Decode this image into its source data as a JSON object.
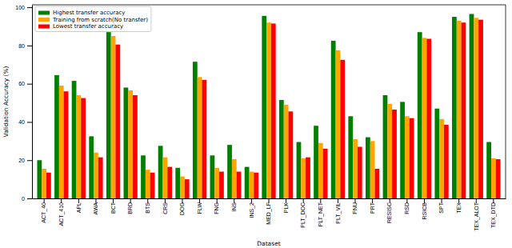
{
  "chart_data": {
    "type": "bar",
    "x_label": "Dataset",
    "y_label": "Validation Accuracy (%)",
    "categories": [
      "ACT_40",
      "ACT_410",
      "APL",
      "AWA",
      "BCT",
      "BRD",
      "BTS",
      "CRS",
      "DOG",
      "FLW",
      "FNG",
      "INS",
      "INS_2",
      "MED_LF",
      "PLK",
      "PLT_DOC",
      "PLT_NET",
      "PLT_VIL",
      "PNU",
      "PRT",
      "RESISC",
      "RSD",
      "RSICB",
      "SPT",
      "TEX",
      "TEX_ALOT",
      "TEX_DTD"
    ],
    "series": [
      {
        "name": "Highest transfer accuracy",
        "color": "#008000",
        "values": [
          20,
          64.5,
          61.5,
          32.5,
          87,
          58,
          22.5,
          27.5,
          16,
          71.5,
          22.5,
          28,
          16.5,
          95.5,
          51.5,
          29.5,
          38,
          82.5,
          43,
          32,
          54,
          50.5,
          87,
          47,
          95,
          96.5,
          29.5
        ]
      },
      {
        "name": "Training from scratch(No transfer)",
        "color": "#ffa500",
        "values": [
          15.5,
          59,
          54,
          24,
          85,
          56.5,
          15,
          21.5,
          11.5,
          63.5,
          16,
          20.5,
          14,
          92,
          49,
          21,
          29,
          77.5,
          31,
          30,
          49.5,
          43,
          84,
          41.5,
          93,
          94.5,
          21
        ]
      },
      {
        "name": "Lowest transfer accuracy",
        "color": "#ff0000",
        "values": [
          13.5,
          56,
          52.5,
          21.5,
          80.5,
          54,
          13.5,
          16.5,
          10,
          62,
          14,
          14,
          13.5,
          91.5,
          45.5,
          21.5,
          26,
          72.5,
          27,
          15.5,
          46.5,
          42,
          83.5,
          38.5,
          92,
          93.5,
          20.5
        ]
      }
    ],
    "ylim": [
      0,
      101.3
    ],
    "yticks": [
      0,
      20,
      40,
      60,
      80,
      100
    ],
    "legend": "upper-left",
    "grid": false
  }
}
